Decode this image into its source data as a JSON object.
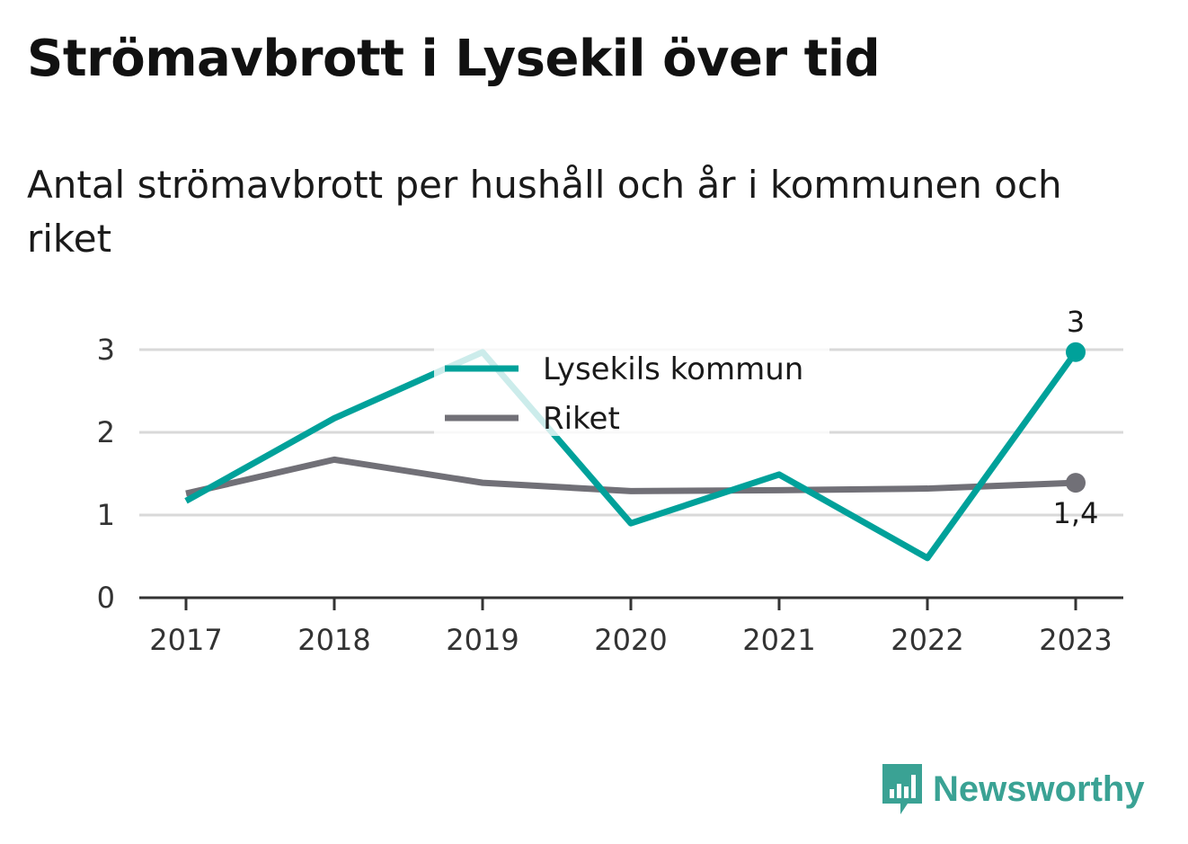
{
  "title": "Strömavbrott i Lysekil över tid",
  "subtitle": "Antal strömavbrott per hushåll och år i kommunen och riket",
  "brand": {
    "name": "Newsworthy",
    "icon": "bar-chart-speech-bubble-icon",
    "color": "#3aa294"
  },
  "chart_data": {
    "type": "line",
    "x": [
      "2017",
      "2018",
      "2019",
      "2020",
      "2021",
      "2022",
      "2023"
    ],
    "ylim": [
      0,
      3.2
    ],
    "yticks": [
      "0",
      "1",
      "2",
      "3"
    ],
    "grid": true,
    "legend": "top-center",
    "series": [
      {
        "name": "Lysekils kommun",
        "color": "#00a19a",
        "values": [
          1.17,
          2.17,
          2.97,
          0.9,
          1.49,
          0.48,
          2.97
        ],
        "end_label": "3"
      },
      {
        "name": "Riket",
        "color": "#717077",
        "values": [
          1.26,
          1.67,
          1.39,
          1.29,
          1.3,
          1.32,
          1.39
        ],
        "end_label": "1,4"
      }
    ]
  }
}
